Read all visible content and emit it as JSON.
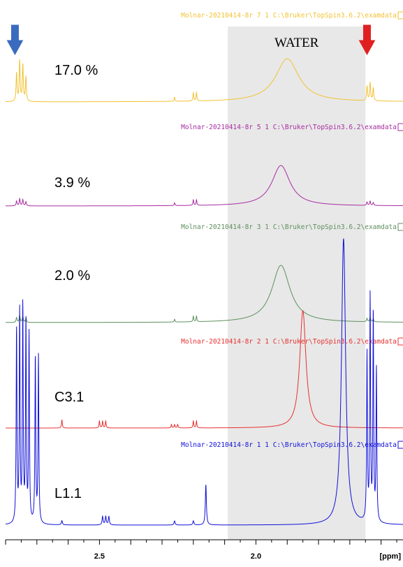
{
  "chart_data": {
    "type": "line",
    "title": "",
    "xlabel": "[ppm]",
    "ylabel": "",
    "x_reversed": true,
    "xlim": [
      2.8,
      1.53
    ],
    "x_ticks": [
      {
        "value": 2.5,
        "label": "2.5"
      },
      {
        "value": 2.0,
        "label": "2.0"
      }
    ],
    "shaded_region": {
      "label": "WATER",
      "range": [
        2.09,
        1.65
      ],
      "color": "#e8e8e8"
    },
    "arrows": [
      {
        "name": "blue-arrow",
        "x": 2.77,
        "color": "#3a6bbf"
      },
      {
        "name": "red-arrow",
        "x": 1.645,
        "color": "#e02020"
      }
    ],
    "series": [
      {
        "name": "17.0 %",
        "color": "#f2c232",
        "header": "Molnar-20210414-8r  7  1  C:\\Bruker\\TopSpin3.6.2\\examdata",
        "water_peak": 1.9
      },
      {
        "name": "3.9 %",
        "color": "#a82ca0",
        "header": "Molnar-20210414-8r  5  1  C:\\Bruker\\TopSpin3.6.2\\examdata",
        "water_peak": 1.92
      },
      {
        "name": "2.0 %",
        "color": "#5e8f5e",
        "header": "Molnar-20210414-8r  3  1  C:\\Bruker\\TopSpin3.6.2\\examdata",
        "water_peak": 1.92
      },
      {
        "name": "C3.1",
        "color": "#e83030",
        "header": "Molnar-20210414-8r  2  1  C:\\Bruker\\TopSpin3.6.2\\examdata",
        "water_peak": 1.85
      },
      {
        "name": "L1.1",
        "color": "#1010d8",
        "header": "Molnar-20210414-8r  1  1  C:\\Bruker\\TopSpin3.6.2\\examdata",
        "water_peak": 1.72
      }
    ]
  }
}
